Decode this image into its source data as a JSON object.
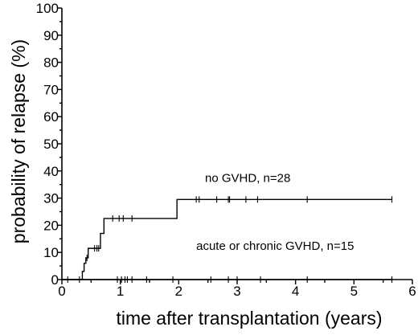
{
  "chart_data": {
    "type": "line",
    "step": true,
    "xlabel": "time after transplantation (years)",
    "ylabel": "probability of relapse (%)",
    "xlim": [
      0,
      6
    ],
    "ylim": [
      0,
      100
    ],
    "xticks": [
      "0",
      "1",
      "2",
      "3",
      "4",
      "5",
      "6"
    ],
    "yticks": [
      "0",
      "10",
      "20",
      "30",
      "40",
      "50",
      "60",
      "70",
      "80",
      "90",
      "100"
    ],
    "grid": false,
    "series": [
      {
        "name": "no GVHD, n=28",
        "x": [
          0.0,
          0.35,
          0.38,
          0.41,
          0.45,
          0.66,
          0.72,
          1.97,
          5.65
        ],
        "y": [
          0,
          3,
          6,
          8,
          11.5,
          17,
          22.5,
          29.5,
          29.5
        ],
        "censored_x": [
          0.43,
          0.56,
          0.6,
          0.63,
          0.87,
          0.98,
          1.05,
          1.2,
          2.3,
          2.35,
          2.65,
          2.85,
          2.87,
          3.15,
          3.35,
          4.2,
          5.65
        ]
      },
      {
        "name": "acute or chronic GVHD, n=15",
        "x": [
          0.0,
          5.65
        ],
        "y": [
          0,
          0
        ],
        "censored_x": [
          0.1,
          0.3,
          0.95,
          1.02,
          1.08,
          1.12,
          1.2,
          1.45,
          1.9,
          2.55,
          2.85,
          3.0,
          3.4,
          4.2,
          5.65
        ]
      }
    ],
    "annotations": [
      {
        "text": "no GVHD,  n=28",
        "x": 2.45,
        "y": 36
      },
      {
        "text": "acute or chronic GVHD,  n=15",
        "x": 2.3,
        "y": 11
      }
    ]
  }
}
